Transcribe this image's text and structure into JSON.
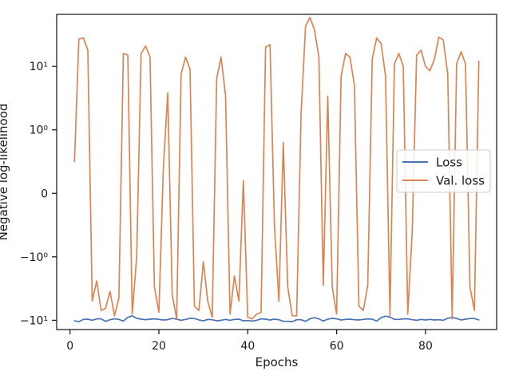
{
  "chart_data": {
    "type": "line",
    "title": "",
    "xlabel": "Epochs",
    "ylabel": "Negative log-likelihood",
    "yscale": "symlog",
    "xlim": [
      -3,
      96
    ],
    "ylim": [
      -14,
      66
    ],
    "x_ticks": [
      0,
      20,
      40,
      60,
      80
    ],
    "y_ticks": [
      {
        "value": 10,
        "label": "10¹"
      },
      {
        "value": 1,
        "label": "10⁰"
      },
      {
        "value": 0,
        "label": "0"
      },
      {
        "value": -1,
        "label": "−10⁰"
      },
      {
        "value": -10,
        "label": "−10¹"
      }
    ],
    "grid": false,
    "legend": {
      "position": "center-right"
    },
    "series": [
      {
        "name": "Loss",
        "color": "#4c72b0",
        "x": [
          1,
          2,
          3,
          4,
          5,
          6,
          7,
          8,
          9,
          10,
          11,
          12,
          13,
          14,
          15,
          16,
          17,
          18,
          19,
          20,
          21,
          22,
          23,
          24,
          25,
          26,
          27,
          28,
          29,
          30,
          31,
          32,
          33,
          34,
          35,
          36,
          37,
          38,
          39,
          40,
          41,
          42,
          43,
          44,
          45,
          46,
          47,
          48,
          49,
          50,
          51,
          52,
          53,
          54,
          55,
          56,
          57,
          58,
          59,
          60,
          61,
          62,
          63,
          64,
          65,
          66,
          67,
          68,
          69,
          70,
          71,
          72,
          73,
          74,
          75,
          76,
          77,
          78,
          79,
          80,
          81,
          82,
          83,
          84,
          85,
          86,
          87,
          88,
          89,
          90,
          91,
          92
        ],
        "values": [
          -10.2,
          -10.5,
          -9.7,
          -9.6,
          -10.0,
          -9.5,
          -9.5,
          -10.4,
          -9.8,
          -9.5,
          -9.7,
          -10.3,
          -9.0,
          -8.5,
          -9.3,
          -9.6,
          -9.8,
          -9.6,
          -9.5,
          -9.7,
          -9.9,
          -9.8,
          -9.3,
          -9.6,
          -10.0,
          -9.7,
          -9.3,
          -9.4,
          -9.9,
          -10.2,
          -9.7,
          -9.8,
          -10.2,
          -10.0,
          -9.7,
          -10.0,
          -9.7,
          -9.6,
          -10.2,
          -10.1,
          -10.3,
          -10.0,
          -9.5,
          -9.6,
          -9.9,
          -9.6,
          -9.8,
          -10.4,
          -10.4,
          -10.5,
          -9.8,
          -9.8,
          -10.4,
          -9.5,
          -9.1,
          -9.5,
          -10.3,
          -9.6,
          -9.3,
          -9.5,
          -9.9,
          -9.7,
          -9.6,
          -9.8,
          -9.9,
          -9.7,
          -9.5,
          -9.6,
          -10.3,
          -9.1,
          -8.6,
          -8.9,
          -9.7,
          -9.7,
          -9.5,
          -9.5,
          -9.8,
          -10.0,
          -9.7,
          -9.9,
          -9.7,
          -9.9,
          -9.8,
          -10.0,
          -9.3,
          -9.0,
          -9.4,
          -9.9,
          -9.6,
          -9.4,
          -9.4,
          -9.9
        ]
      },
      {
        "name": "Val. loss",
        "color": "#dd8452",
        "x": [
          1,
          2,
          3,
          4,
          5,
          6,
          7,
          8,
          9,
          10,
          11,
          12,
          13,
          14,
          15,
          16,
          17,
          18,
          19,
          20,
          21,
          22,
          23,
          24,
          25,
          26,
          27,
          28,
          29,
          30,
          31,
          32,
          33,
          34,
          35,
          36,
          37,
          38,
          39,
          40,
          41,
          42,
          43,
          44,
          45,
          46,
          47,
          48,
          49,
          50,
          51,
          52,
          53,
          54,
          55,
          56,
          57,
          58,
          59,
          60,
          61,
          62,
          63,
          64,
          65,
          66,
          67,
          68,
          69,
          70,
          71,
          72,
          73,
          74,
          75,
          76,
          77,
          78,
          79,
          80,
          81,
          82,
          83,
          84,
          85,
          86,
          87,
          88,
          89,
          90,
          91,
          92
        ],
        "values": [
          0.5,
          27,
          28,
          18,
          -5,
          -2.4,
          -7,
          -6.5,
          -3.5,
          -8.5,
          -4.5,
          16,
          15,
          -8,
          -1,
          16,
          21,
          14,
          -3,
          -7.5,
          0.4,
          3.8,
          -4,
          -9.5,
          7.5,
          14,
          9,
          -6,
          -7,
          -1.2,
          -5,
          -9,
          6.5,
          14,
          3.5,
          -8,
          -2,
          -5,
          0.2,
          -9,
          -9.5,
          -8,
          -7.5,
          20,
          22,
          -0.5,
          -5,
          0.8,
          -3,
          -8.5,
          -8.5,
          1.8,
          43,
          59,
          38,
          14,
          -2.8,
          3.4,
          -3,
          -8,
          7,
          16,
          14,
          5,
          -6,
          -7,
          -2.8,
          13,
          28,
          23,
          7,
          -8.5,
          11,
          16,
          10,
          -8,
          -0.6,
          15,
          18,
          10,
          8.5,
          13,
          29,
          26,
          7.5,
          -9.5,
          11,
          17,
          11,
          -3,
          -7,
          12
        ]
      }
    ]
  }
}
